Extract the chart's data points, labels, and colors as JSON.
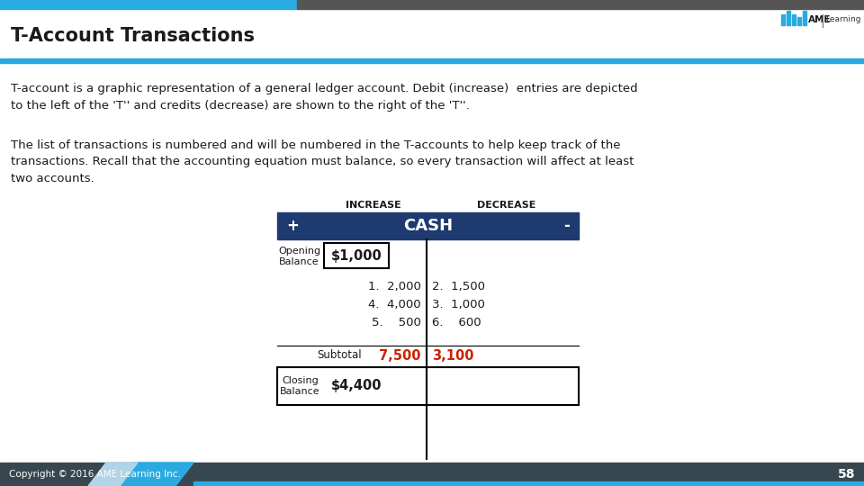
{
  "title": "T-Account Transactions",
  "background_color": "#ffffff",
  "title_color": "#1a1a1a",
  "title_fontsize": 15,
  "para1": "T-account is a graphic representation of a general ledger account. Debit (increase)  entries are depicted\nto the left of the 'T'' and credits (decrease) are shown to the right of the 'T''.",
  "para2": "The list of transactions is numbered and will be numbered in the T-accounts to help keep track of the\ntransactions. Recall that the accounting equation must balance, so every transaction will affect at least\ntwo accounts.",
  "footer_text": "Copyright © 2016 AME Learning Inc.",
  "page_num": "58",
  "increase_label": "INCREASE",
  "decrease_label": "DECREASE",
  "cash_label": "CASH",
  "plus_label": "+",
  "minus_label": "-",
  "header_dark_blue": "#1e3a6e",
  "opening_balance_label": "Opening\nBalance",
  "opening_balance_value": "$1,000",
  "debit_entries": [
    "1.  2,000",
    "4.  4,000",
    "5.    500"
  ],
  "credit_entries": [
    "2.  1,500",
    "3.  1,000",
    "6.    600"
  ],
  "subtotal_label": "Subtotal",
  "subtotal_debit": "7,500",
  "subtotal_credit": "3,100",
  "subtotal_color": "#cc2200",
  "closing_balance_label": "Closing\nBalance",
  "closing_balance_value": "$4,400",
  "footer_bg": "#455a64",
  "footer_dark": "#37474f",
  "accent_cyan": "#29abe2",
  "top_bar_cyan": "#29abe2",
  "top_bar_dark": "#555555",
  "logo_bar_color": "#29abe2",
  "logo_text_color": "#1a1a1a",
  "bottom_bar_cyan": "#29abe2",
  "bottom_bar_dark": "#37474f"
}
